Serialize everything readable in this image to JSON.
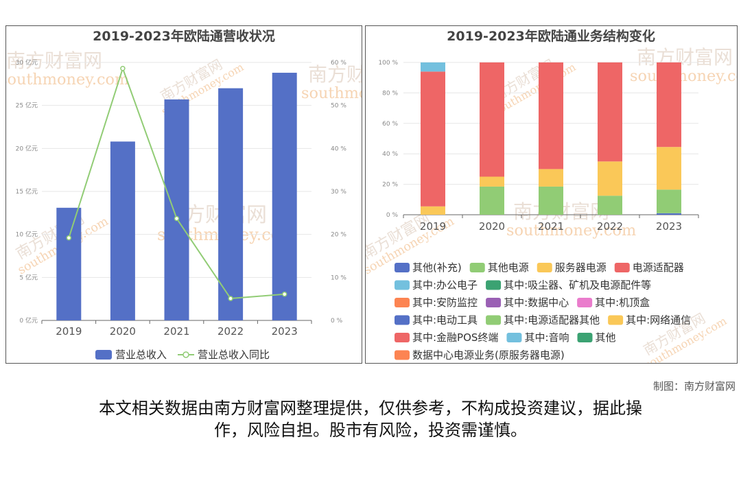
{
  "watermark": {
    "cn": "南方财富网",
    "en": "southmoney.com"
  },
  "chart_data": [
    {
      "type": "bar",
      "title": "2019-2023年欧陆通营收状况",
      "categories": [
        "2019",
        "2020",
        "2021",
        "2022",
        "2023"
      ],
      "y_left": {
        "ticks": [
          "0 亿元",
          "5 亿元",
          "10 亿元",
          "15 亿元",
          "20 亿元",
          "25 亿元",
          "30 亿元"
        ],
        "range": [
          0,
          30
        ]
      },
      "y_right": {
        "ticks": [
          "0 %",
          "10 %",
          "20 %",
          "30 %",
          "40 %",
          "50 %",
          "60 %"
        ],
        "range": [
          0,
          60
        ]
      },
      "series": [
        {
          "name": "营业总收入",
          "type": "bar",
          "axis": "left",
          "color": "#5470c6",
          "values": [
            13.1,
            20.8,
            25.7,
            27.0,
            28.8
          ]
        },
        {
          "name": "营业总收入同比",
          "type": "line",
          "axis": "right",
          "color": "#91cc75",
          "values": [
            19.2,
            58.6,
            23.7,
            5.1,
            6.1
          ]
        }
      ],
      "legend": "bottom"
    },
    {
      "type": "bar",
      "stacked": true,
      "title": "2019-2023年欧陆通业务结构变化",
      "categories": [
        "2019",
        "2020",
        "2021",
        "2022",
        "2023"
      ],
      "y": {
        "ticks": [
          "0 %",
          "20 %",
          "40 %",
          "60 %",
          "80 %",
          "100 %"
        ],
        "range": [
          0,
          100
        ]
      },
      "series": [
        {
          "name": "其他(补充)",
          "color": "#5470c6",
          "values": [
            0,
            0,
            0,
            0,
            1.0
          ]
        },
        {
          "name": "其他电源",
          "color": "#91cc75",
          "values": [
            0,
            18.5,
            18.5,
            12.5,
            15.5
          ]
        },
        {
          "name": "服务器电源",
          "color": "#fac858",
          "values": [
            5.5,
            6.5,
            11.5,
            22.5,
            28.0
          ]
        },
        {
          "name": "电源适配器",
          "color": "#ee6666",
          "values": [
            88.5,
            75.0,
            70.0,
            65.0,
            55.5
          ]
        },
        {
          "name": "其中:办公电子",
          "color": "#73c0de",
          "values": [
            6.0,
            0,
            0,
            0,
            0
          ]
        },
        {
          "name": "其中:吸尘器、矿机及电源配件等",
          "color": "#3ba272",
          "values": [
            0,
            0,
            0,
            0,
            0
          ]
        },
        {
          "name": "其中:安防监控",
          "color": "#fc8452",
          "values": [
            0,
            0,
            0,
            0,
            0
          ]
        },
        {
          "name": "其中:数据中心",
          "color": "#9a60b4",
          "values": [
            0,
            0,
            0,
            0,
            0
          ]
        },
        {
          "name": "其中:机顶盒",
          "color": "#ea7ccc",
          "values": [
            0,
            0,
            0,
            0,
            0
          ]
        },
        {
          "name": "其中:电动工具",
          "color": "#5470c6",
          "values": [
            0,
            0,
            0,
            0,
            0
          ]
        },
        {
          "name": "其中:电源适配器其他",
          "color": "#91cc75",
          "values": [
            0,
            0,
            0,
            0,
            0
          ]
        },
        {
          "name": "其中:网络通信",
          "color": "#fac858",
          "values": [
            0,
            0,
            0,
            0,
            0
          ]
        },
        {
          "name": "其中:金融POS终端",
          "color": "#ee6666",
          "values": [
            0,
            0,
            0,
            0,
            0
          ]
        },
        {
          "name": "其中:音响",
          "color": "#73c0de",
          "values": [
            0,
            0,
            0,
            0,
            0
          ]
        },
        {
          "name": "其他",
          "color": "#3ba272",
          "values": [
            0,
            0,
            0,
            0,
            0
          ]
        },
        {
          "name": "数据中心电源业务(原服务器电源)",
          "color": "#fc8452",
          "values": [
            0,
            0,
            0,
            0,
            0
          ]
        }
      ],
      "legend": "bottom"
    }
  ],
  "footer": {
    "credit": "制图：南方财富网",
    "disclaimer_line1": "本文相关数据由南方财富网整理提供，仅供参考，不构成投资建议，据此操",
    "disclaimer_line2": "作，风险自担。股市有风险，投资需谨慎。"
  }
}
